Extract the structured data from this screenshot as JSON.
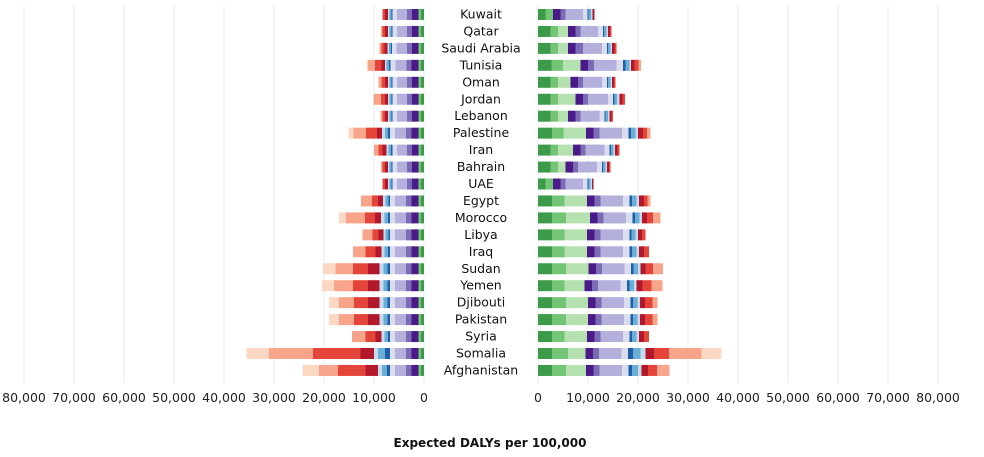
{
  "chart_data": {
    "type": "bar",
    "orientation": "horizontal",
    "layout": "back-to-back",
    "xlabel": "Expected DALYs per 100,000",
    "xlim": [
      0,
      80000
    ],
    "x_ticks": [
      0,
      10000,
      20000,
      30000,
      40000,
      50000,
      60000,
      70000,
      80000
    ],
    "x_tick_labels": [
      "0",
      "10,000",
      "20,000",
      "30,000",
      "40,000",
      "50,000",
      "60,000",
      "70,000",
      "80,000"
    ],
    "grid": true,
    "legend": "none",
    "categories": [
      "Kuwait",
      "Qatar",
      "Saudi Arabia",
      "Tunisia",
      "Oman",
      "Jordan",
      "Lebanon",
      "Palestine",
      "Iran",
      "Bahrain",
      "UAE",
      "Egypt",
      "Morocco",
      "Libya",
      "Iraq",
      "Sudan",
      "Yemen",
      "Djibouti",
      "Pakistan",
      "Syria",
      "Somalia",
      "Afghanistan"
    ],
    "segment_colors": [
      "#3d9a4a",
      "#74c476",
      "#b5e0b0",
      "#4a1a86",
      "#7b6bb5",
      "#b3b1dc",
      "#dcdcef",
      "#1f5fa8",
      "#6aaed6",
      "#c6dbef",
      "#b2182b",
      "#e3453a",
      "#f8a48a",
      "#fcd8c4"
    ],
    "left_series": [
      {
        "segments": [
          600,
          500,
          0,
          1300,
          1000,
          2000,
          900,
          200,
          400,
          300,
          600,
          500,
          0,
          0
        ]
      },
      {
        "segments": [
          600,
          500,
          0,
          1300,
          1000,
          2000,
          900,
          200,
          400,
          300,
          600,
          500,
          300,
          0
        ]
      },
      {
        "segments": [
          600,
          500,
          0,
          1300,
          1000,
          2100,
          900,
          200,
          400,
          300,
          600,
          600,
          400,
          0
        ]
      },
      {
        "segments": [
          600,
          500,
          0,
          1400,
          1000,
          2200,
          1000,
          300,
          500,
          300,
          700,
          1300,
          1500,
          0
        ]
      },
      {
        "segments": [
          600,
          500,
          0,
          1300,
          1000,
          2000,
          900,
          200,
          400,
          300,
          600,
          700,
          600,
          0
        ]
      },
      {
        "segments": [
          600,
          500,
          0,
          1300,
          1000,
          2000,
          900,
          200,
          400,
          300,
          600,
          800,
          1500,
          0
        ]
      },
      {
        "segments": [
          600,
          500,
          0,
          1300,
          1000,
          2000,
          900,
          200,
          400,
          300,
          600,
          500,
          400,
          0
        ]
      },
      {
        "segments": [
          600,
          500,
          0,
          1400,
          1100,
          2200,
          1000,
          400,
          600,
          600,
          1000,
          2200,
          2500,
          1000
        ]
      },
      {
        "segments": [
          600,
          500,
          0,
          1300,
          1000,
          2000,
          900,
          300,
          500,
          400,
          800,
          800,
          900,
          0
        ]
      },
      {
        "segments": [
          600,
          500,
          0,
          1300,
          1000,
          2000,
          900,
          200,
          400,
          300,
          600,
          500,
          300,
          0
        ]
      },
      {
        "segments": [
          600,
          500,
          0,
          1300,
          1000,
          2000,
          900,
          200,
          400,
          300,
          600,
          500,
          0,
          0
        ]
      },
      {
        "segments": [
          600,
          500,
          0,
          1400,
          1100,
          2200,
          1000,
          300,
          600,
          500,
          1000,
          1200,
          2200,
          0
        ]
      },
      {
        "segments": [
          600,
          500,
          0,
          1400,
          1100,
          2200,
          1000,
          400,
          700,
          700,
          1200,
          2000,
          3800,
          1400
        ]
      },
      {
        "segments": [
          600,
          500,
          0,
          1400,
          1100,
          2200,
          1000,
          300,
          600,
          400,
          1000,
          1200,
          2000,
          0
        ]
      },
      {
        "segments": [
          600,
          500,
          0,
          1400,
          1100,
          2200,
          1000,
          400,
          700,
          600,
          1200,
          2000,
          2500,
          0
        ]
      },
      {
        "segments": [
          600,
          500,
          0,
          1400,
          1100,
          2200,
          1000,
          500,
          800,
          800,
          2300,
          3000,
          3500,
          2500
        ]
      },
      {
        "segments": [
          600,
          500,
          0,
          1400,
          1100,
          2200,
          1000,
          500,
          800,
          800,
          2300,
          3000,
          3800,
          2400
        ]
      },
      {
        "segments": [
          600,
          500,
          0,
          1400,
          1100,
          2200,
          1000,
          500,
          800,
          800,
          2300,
          2800,
          3000,
          2000
        ]
      },
      {
        "segments": [
          600,
          500,
          0,
          1400,
          1100,
          2200,
          1000,
          500,
          800,
          800,
          2300,
          2800,
          3000,
          2000
        ]
      },
      {
        "segments": [
          600,
          500,
          0,
          1400,
          1100,
          2200,
          1000,
          400,
          700,
          600,
          1200,
          2000,
          2700,
          0
        ]
      },
      {
        "segments": [
          600,
          500,
          0,
          1400,
          1100,
          2200,
          1000,
          1000,
          1400,
          800,
          2700,
          9500,
          8800,
          4500
        ]
      },
      {
        "segments": [
          600,
          500,
          0,
          1400,
          1100,
          2200,
          1000,
          600,
          1000,
          800,
          2500,
          5500,
          3800,
          3300
        ]
      }
    ],
    "right_series": [
      {
        "segments": [
          1500,
          1500,
          0,
          1500,
          1000,
          3500,
          900,
          200,
          500,
          300,
          400,
          0,
          0,
          0
        ]
      },
      {
        "segments": [
          2500,
          1500,
          2000,
          1500,
          1000,
          3500,
          1000,
          200,
          500,
          300,
          400,
          300,
          0,
          0
        ]
      },
      {
        "segments": [
          2500,
          1500,
          2000,
          1500,
          1500,
          3800,
          1000,
          200,
          500,
          300,
          500,
          400,
          0,
          0
        ]
      },
      {
        "segments": [
          2700,
          2300,
          3500,
          1500,
          1200,
          4500,
          1300,
          500,
          800,
          300,
          700,
          800,
          500,
          0
        ]
      },
      {
        "segments": [
          2500,
          1500,
          2500,
          1500,
          1000,
          3800,
          1000,
          200,
          500,
          300,
          400,
          300,
          0,
          0
        ]
      },
      {
        "segments": [
          2500,
          1500,
          3500,
          1500,
          1000,
          4000,
          1000,
          300,
          500,
          500,
          600,
          500,
          0,
          0
        ]
      },
      {
        "segments": [
          2500,
          1500,
          2000,
          1500,
          1000,
          3800,
          1000,
          200,
          500,
          300,
          400,
          300,
          0,
          0
        ]
      },
      {
        "segments": [
          2800,
          2300,
          4500,
          1500,
          1200,
          4500,
          1300,
          500,
          900,
          500,
          1000,
          800,
          700,
          0
        ]
      },
      {
        "segments": [
          2500,
          1500,
          3000,
          1500,
          1000,
          3800,
          1000,
          300,
          500,
          300,
          500,
          400,
          0,
          0
        ]
      },
      {
        "segments": [
          2500,
          1500,
          1500,
          1500,
          1000,
          3800,
          1000,
          200,
          500,
          300,
          400,
          300,
          0,
          0
        ]
      },
      {
        "segments": [
          1500,
          1500,
          0,
          1500,
          1000,
          3500,
          900,
          200,
          400,
          300,
          300,
          0,
          0,
          0
        ]
      },
      {
        "segments": [
          2800,
          2500,
          4500,
          1500,
          1200,
          4500,
          1300,
          500,
          900,
          500,
          1000,
          700,
          600,
          0
        ]
      },
      {
        "segments": [
          2800,
          2800,
          4800,
          1500,
          1200,
          4500,
          1300,
          500,
          900,
          500,
          1000,
          1200,
          1500,
          0
        ]
      },
      {
        "segments": [
          2800,
          2500,
          4500,
          1500,
          1200,
          4500,
          1300,
          400,
          800,
          500,
          800,
          700,
          0,
          0
        ]
      },
      {
        "segments": [
          2800,
          2500,
          4500,
          1500,
          1200,
          4500,
          1300,
          500,
          900,
          500,
          1000,
          1000,
          0,
          0
        ]
      },
      {
        "segments": [
          2800,
          2800,
          4500,
          1500,
          1200,
          4500,
          1300,
          500,
          900,
          500,
          1000,
          1500,
          2000,
          0
        ]
      },
      {
        "segments": [
          2800,
          2500,
          4000,
          1500,
          1200,
          4500,
          1300,
          500,
          900,
          500,
          1200,
          1800,
          2200,
          0
        ]
      },
      {
        "segments": [
          2800,
          2800,
          4400,
          1500,
          1200,
          4500,
          1300,
          500,
          900,
          500,
          1000,
          1500,
          1000,
          0
        ]
      },
      {
        "segments": [
          2800,
          2800,
          4400,
          1500,
          1200,
          4500,
          1300,
          500,
          900,
          500,
          1000,
          1500,
          1000,
          0
        ]
      },
      {
        "segments": [
          2800,
          2500,
          4500,
          1500,
          1200,
          4500,
          1300,
          500,
          900,
          500,
          1000,
          1000,
          0,
          0
        ]
      },
      {
        "segments": [
          2800,
          3200,
          3500,
          1500,
          1200,
          4500,
          1300,
          1000,
          1500,
          1000,
          1700,
          3000,
          6500,
          4000
        ]
      },
      {
        "segments": [
          2800,
          2800,
          4000,
          1500,
          1200,
          4500,
          1300,
          700,
          1200,
          700,
          1300,
          1800,
          2500,
          0
        ]
      }
    ]
  }
}
